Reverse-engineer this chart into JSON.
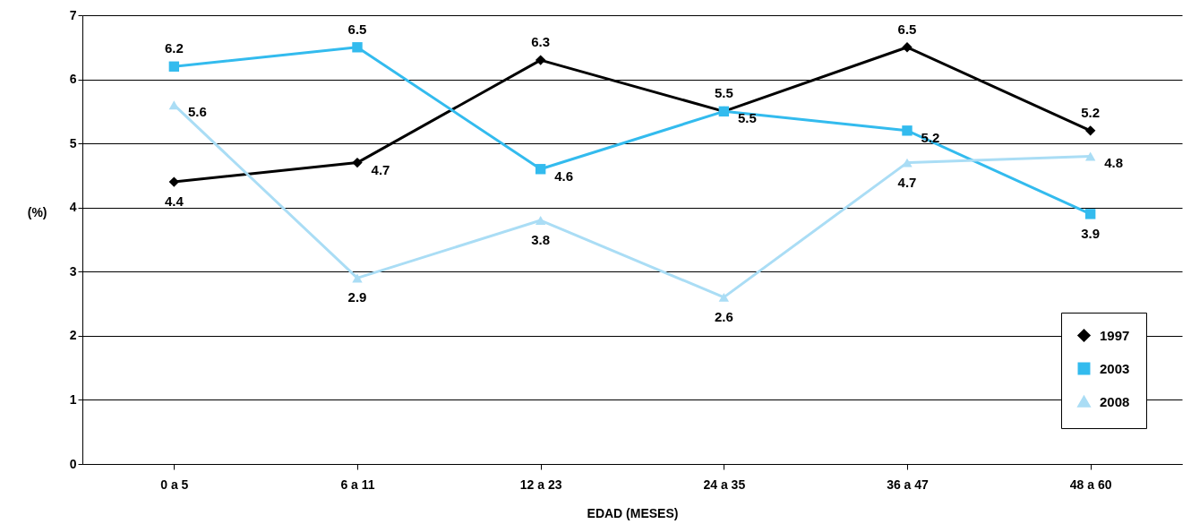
{
  "chart_data": {
    "type": "line",
    "xlabel": "EDAD (MESES)",
    "ylabel": "(%)",
    "categories": [
      "0 a 5",
      "6 a 11",
      "12 a 23",
      "24 a 35",
      "36 a 47",
      "48 a 60"
    ],
    "series": [
      {
        "name": "1997",
        "color": "#000000",
        "marker": "diamond",
        "values": [
          4.4,
          4.7,
          6.3,
          5.5,
          6.5,
          5.2
        ]
      },
      {
        "name": "2003",
        "color": "#33bbee",
        "marker": "square",
        "values": [
          6.2,
          6.5,
          4.6,
          5.5,
          5.2,
          3.9
        ]
      },
      {
        "name": "2008",
        "color": "#aaddf5",
        "marker": "triangle",
        "values": [
          5.6,
          2.9,
          3.8,
          2.6,
          4.7,
          4.8
        ]
      }
    ],
    "ylim": [
      0,
      7
    ],
    "yticks": [
      0,
      1,
      2,
      3,
      4,
      5,
      6,
      7
    ],
    "grid": "y",
    "legend": "bottom right",
    "data_labels": true,
    "line_style": "solid"
  }
}
